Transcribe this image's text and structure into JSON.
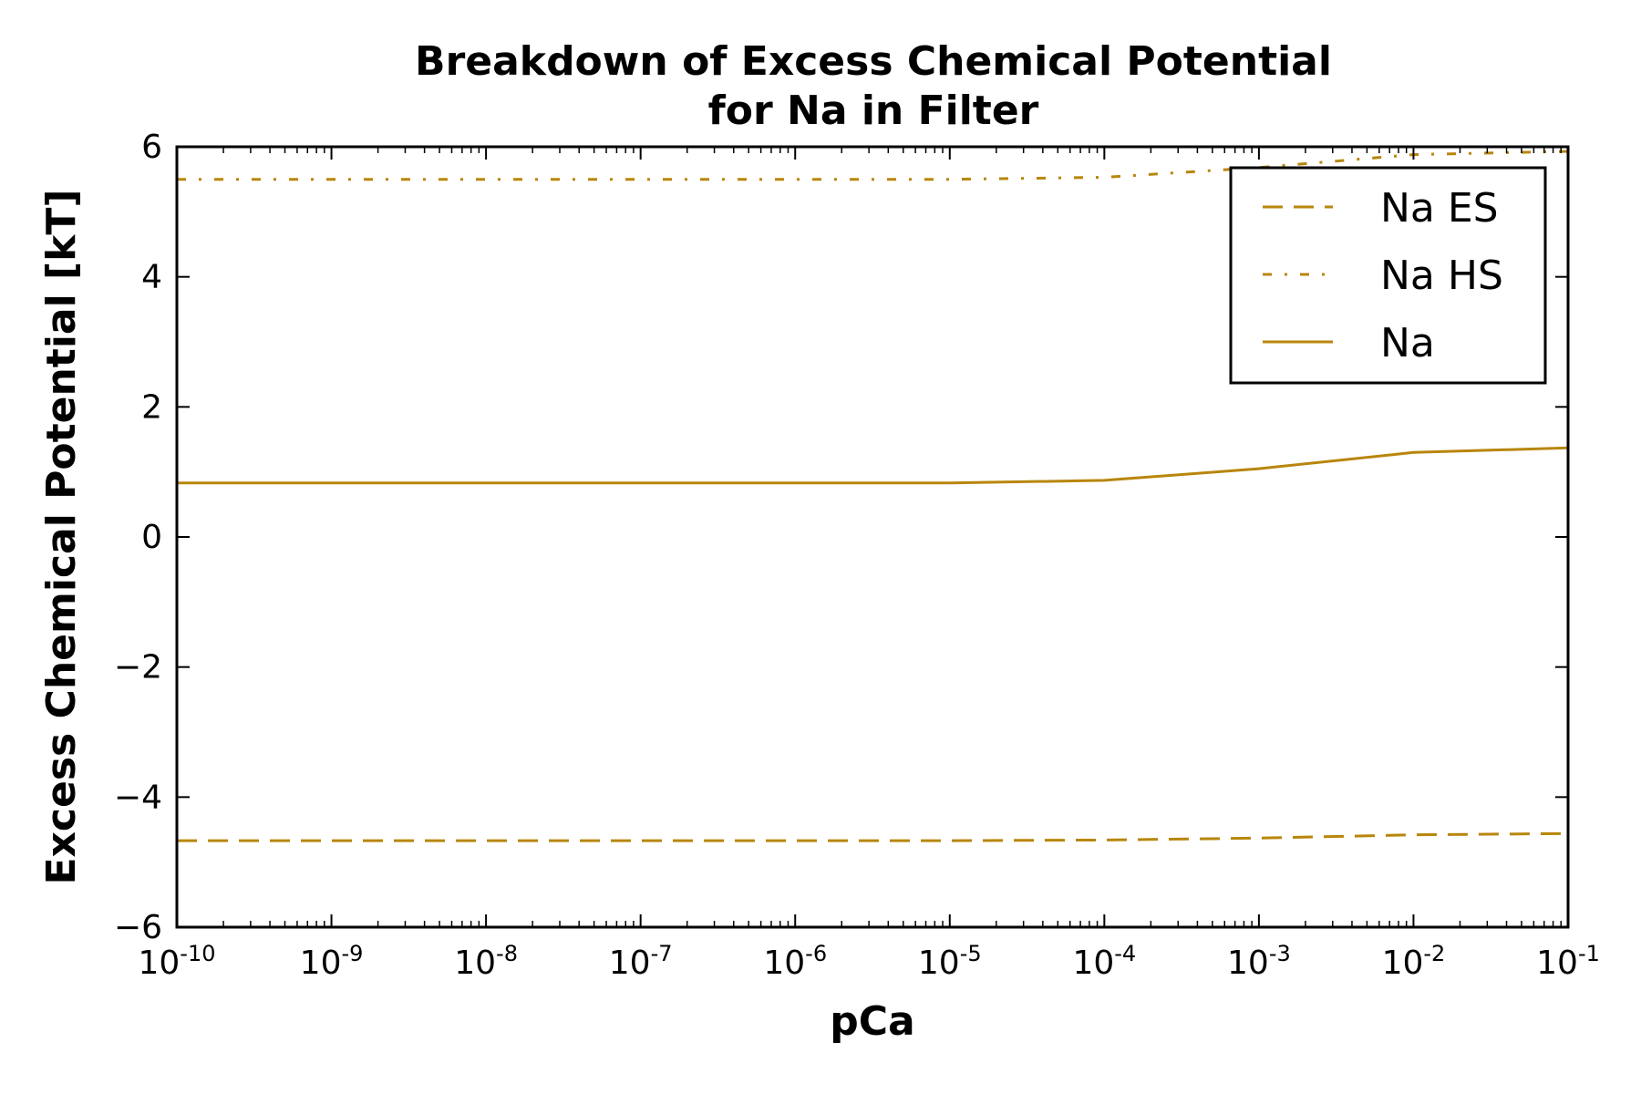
{
  "chart_data": {
    "type": "line",
    "title": [
      "Breakdown of Excess Chemical Potential",
      "for Na in Filter"
    ],
    "xlabel": "pCa",
    "ylabel": "Excess Chemical Potential [kT]",
    "x_scale": "log",
    "xlim": [
      1e-10,
      0.1
    ],
    "ylim": [
      -6,
      6
    ],
    "x": [
      1e-10,
      1e-09,
      1e-08,
      1e-07,
      1e-06,
      1e-05,
      0.0001,
      0.001,
      0.01,
      0.1
    ],
    "x_ticks": [
      {
        "base": "10",
        "exp": "-10"
      },
      {
        "base": "10",
        "exp": "-9"
      },
      {
        "base": "10",
        "exp": "-8"
      },
      {
        "base": "10",
        "exp": "-7"
      },
      {
        "base": "10",
        "exp": "-6"
      },
      {
        "base": "10",
        "exp": "-5"
      },
      {
        "base": "10",
        "exp": "-4"
      },
      {
        "base": "10",
        "exp": "-3"
      },
      {
        "base": "10",
        "exp": "-2"
      },
      {
        "base": "10",
        "exp": "-1"
      }
    ],
    "y_ticks": [
      "−6",
      "−4",
      "−2",
      "0",
      "2",
      "4",
      "6"
    ],
    "grid": false,
    "legend_position": "top-right",
    "series": [
      {
        "name": "Na ES",
        "style": "dashed",
        "color": "#b8860b",
        "values": [
          -4.67,
          -4.67,
          -4.67,
          -4.67,
          -4.67,
          -4.67,
          -4.66,
          -4.63,
          -4.58,
          -4.56
        ]
      },
      {
        "name": "Na HS",
        "style": "dashdot",
        "color": "#b8860b",
        "values": [
          5.5,
          5.5,
          5.5,
          5.5,
          5.5,
          5.5,
          5.53,
          5.68,
          5.88,
          5.93
        ]
      },
      {
        "name": "Na",
        "style": "solid",
        "color": "#b8860b",
        "values": [
          0.83,
          0.83,
          0.83,
          0.83,
          0.83,
          0.83,
          0.87,
          1.05,
          1.3,
          1.37
        ]
      }
    ]
  }
}
